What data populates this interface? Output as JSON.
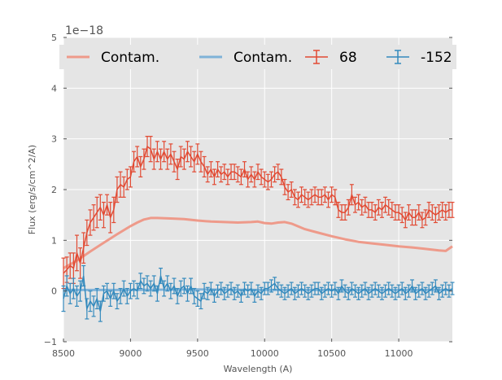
{
  "chart_data": {
    "type": "line",
    "xlabel": "Wavelength (A)",
    "ylabel": "Flux (erg/s/cm^2/A)",
    "y_offset_label": "1e−18",
    "xlim": [
      8500,
      11400
    ],
    "ylim": [
      -1,
      5
    ],
    "y_scale": 1e-18,
    "xticks": [
      8500,
      9000,
      9500,
      10000,
      10500,
      11000
    ],
    "yticks": [
      -1,
      0,
      1,
      2,
      3,
      4,
      5
    ],
    "grid": true,
    "legend_position": "top",
    "colors": {
      "red": "#E24A33",
      "blue": "#348ABD",
      "red_contam": "#EE9A8A",
      "blue_contam": "#7FB2D8",
      "background": "#E5E5E5",
      "grid": "#ffffff"
    },
    "legend": [
      {
        "label": "Contam.",
        "kind": "line",
        "color": "#EE9A8A"
      },
      {
        "label": "Contam.",
        "kind": "line",
        "color": "#7FB2D8"
      },
      {
        "label": "68",
        "kind": "errorbar",
        "color": "#E24A33"
      },
      {
        "label": "-152",
        "kind": "errorbar",
        "color": "#348ABD"
      }
    ],
    "series": [
      {
        "name": "Contam.",
        "role": "contamination",
        "color": "#EE9A8A",
        "x": [
          8500,
          8600,
          8700,
          8800,
          8900,
          9000,
          9050,
          9100,
          9150,
          9200,
          9300,
          9400,
          9500,
          9600,
          9700,
          9800,
          9900,
          9950,
          10000,
          10050,
          10100,
          10150,
          10200,
          10300,
          10400,
          10500,
          10600,
          10700,
          10800,
          10900,
          11000,
          11100,
          11200,
          11300,
          11350,
          11400
        ],
        "y": [
          0.45,
          0.6,
          0.78,
          0.95,
          1.12,
          1.28,
          1.35,
          1.41,
          1.44,
          1.44,
          1.43,
          1.42,
          1.39,
          1.37,
          1.36,
          1.35,
          1.36,
          1.37,
          1.34,
          1.33,
          1.35,
          1.36,
          1.33,
          1.22,
          1.15,
          1.08,
          1.02,
          0.97,
          0.94,
          0.91,
          0.88,
          0.86,
          0.83,
          0.8,
          0.79,
          0.88
        ]
      },
      {
        "name": "Contam.",
        "role": "contamination",
        "color": "#7FB2D8",
        "x": [
          8500,
          8700,
          9000,
          9500,
          10000,
          10500,
          11000,
          11400
        ],
        "y": [
          0.02,
          0.02,
          0.02,
          0.03,
          0.02,
          0.02,
          0.02,
          0.02
        ]
      },
      {
        "name": "68",
        "role": "errorbar",
        "color": "#E24A33",
        "x": [
          8500,
          8525,
          8550,
          8575,
          8600,
          8625,
          8650,
          8675,
          8700,
          8725,
          8750,
          8775,
          8800,
          8825,
          8850,
          8875,
          8900,
          8925,
          8950,
          8975,
          9000,
          9025,
          9050,
          9075,
          9100,
          9125,
          9150,
          9175,
          9200,
          9225,
          9250,
          9275,
          9300,
          9325,
          9350,
          9375,
          9400,
          9425,
          9450,
          9475,
          9500,
          9525,
          9550,
          9575,
          9600,
          9625,
          9650,
          9675,
          9700,
          9725,
          9750,
          9775,
          9800,
          9825,
          9850,
          9875,
          9900,
          9925,
          9950,
          9975,
          10000,
          10025,
          10050,
          10075,
          10100,
          10125,
          10150,
          10175,
          10200,
          10225,
          10250,
          10275,
          10300,
          10325,
          10350,
          10375,
          10400,
          10425,
          10450,
          10475,
          10500,
          10525,
          10550,
          10575,
          10600,
          10625,
          10650,
          10675,
          10700,
          10725,
          10750,
          10775,
          10800,
          10825,
          10850,
          10875,
          10900,
          10925,
          10950,
          10975,
          11000,
          11025,
          11050,
          11075,
          11100,
          11125,
          11150,
          11175,
          11200,
          11225,
          11250,
          11275,
          11300,
          11325,
          11350,
          11375,
          11400
        ],
        "y": [
          0.35,
          0.42,
          0.5,
          0.45,
          0.75,
          0.55,
          0.85,
          1.15,
          1.35,
          1.45,
          1.55,
          1.65,
          1.5,
          1.7,
          1.45,
          1.6,
          2.0,
          2.1,
          2.05,
          2.2,
          2.25,
          2.55,
          2.65,
          2.45,
          2.6,
          2.85,
          2.8,
          2.6,
          2.75,
          2.6,
          2.75,
          2.6,
          2.7,
          2.55,
          2.4,
          2.65,
          2.6,
          2.75,
          2.65,
          2.55,
          2.7,
          2.55,
          2.45,
          2.3,
          2.4,
          2.25,
          2.4,
          2.3,
          2.35,
          2.25,
          2.35,
          2.35,
          2.3,
          2.25,
          2.4,
          2.2,
          2.3,
          2.2,
          2.35,
          2.25,
          2.2,
          2.15,
          2.2,
          2.3,
          2.35,
          2.25,
          2.05,
          1.95,
          2.0,
          1.85,
          1.8,
          1.9,
          1.85,
          1.8,
          1.85,
          1.9,
          1.85,
          1.85,
          1.9,
          1.8,
          1.9,
          1.85,
          1.6,
          1.55,
          1.55,
          1.65,
          1.9,
          1.7,
          1.75,
          1.65,
          1.7,
          1.6,
          1.6,
          1.55,
          1.65,
          1.6,
          1.7,
          1.65,
          1.6,
          1.55,
          1.55,
          1.5,
          1.4,
          1.55,
          1.45,
          1.45,
          1.55,
          1.4,
          1.45,
          1.6,
          1.55,
          1.5,
          1.55,
          1.6,
          1.55,
          1.6,
          1.6
        ],
        "err": [
          0.3,
          0.25,
          0.25,
          0.3,
          0.35,
          0.3,
          0.3,
          0.25,
          0.25,
          0.25,
          0.3,
          0.25,
          0.25,
          0.2,
          0.3,
          0.25,
          0.25,
          0.25,
          0.2,
          0.2,
          0.2,
          0.2,
          0.2,
          0.2,
          0.2,
          0.2,
          0.25,
          0.2,
          0.2,
          0.2,
          0.2,
          0.2,
          0.2,
          0.2,
          0.2,
          0.2,
          0.2,
          0.2,
          0.2,
          0.2,
          0.2,
          0.2,
          0.2,
          0.15,
          0.15,
          0.15,
          0.15,
          0.15,
          0.15,
          0.15,
          0.15,
          0.15,
          0.15,
          0.15,
          0.15,
          0.15,
          0.15,
          0.15,
          0.15,
          0.15,
          0.15,
          0.15,
          0.15,
          0.15,
          0.15,
          0.15,
          0.15,
          0.15,
          0.15,
          0.15,
          0.15,
          0.15,
          0.15,
          0.15,
          0.15,
          0.15,
          0.15,
          0.15,
          0.15,
          0.15,
          0.15,
          0.15,
          0.15,
          0.15,
          0.15,
          0.15,
          0.2,
          0.15,
          0.15,
          0.15,
          0.15,
          0.15,
          0.15,
          0.15,
          0.15,
          0.15,
          0.15,
          0.15,
          0.15,
          0.15,
          0.15,
          0.15,
          0.15,
          0.15,
          0.15,
          0.15,
          0.15,
          0.15,
          0.15,
          0.15,
          0.15,
          0.15,
          0.15,
          0.15,
          0.15,
          0.15,
          0.15
        ]
      },
      {
        "name": "-152",
        "role": "errorbar",
        "color": "#348ABD",
        "x": [
          8500,
          8525,
          8550,
          8575,
          8600,
          8625,
          8650,
          8675,
          8700,
          8725,
          8750,
          8775,
          8800,
          8825,
          8850,
          8875,
          8900,
          8925,
          8950,
          8975,
          9000,
          9025,
          9050,
          9075,
          9100,
          9125,
          9150,
          9175,
          9200,
          9225,
          9250,
          9275,
          9300,
          9325,
          9350,
          9375,
          9400,
          9425,
          9450,
          9475,
          9500,
          9525,
          9550,
          9575,
          9600,
          9625,
          9650,
          9675,
          9700,
          9725,
          9750,
          9775,
          9800,
          9825,
          9850,
          9875,
          9900,
          9925,
          9950,
          9975,
          10000,
          10025,
          10050,
          10075,
          10100,
          10125,
          10150,
          10175,
          10200,
          10225,
          10250,
          10275,
          10300,
          10325,
          10350,
          10375,
          10400,
          10425,
          10450,
          10475,
          10500,
          10525,
          10550,
          10575,
          10600,
          10625,
          10650,
          10675,
          10700,
          10725,
          10750,
          10775,
          10800,
          10825,
          10850,
          10875,
          10900,
          10925,
          10950,
          10975,
          11000,
          11025,
          11050,
          11075,
          11100,
          11125,
          11150,
          11175,
          11200,
          11225,
          11250,
          11275,
          11300,
          11325,
          11350,
          11375,
          11400
        ],
        "y": [
          -0.15,
          0.1,
          -0.05,
          0.05,
          -0.1,
          0.0,
          0.3,
          -0.35,
          -0.2,
          -0.3,
          -0.15,
          -0.4,
          -0.05,
          0.0,
          -0.15,
          0.0,
          -0.2,
          -0.1,
          0.05,
          -0.1,
          0.0,
          0.05,
          0.0,
          0.2,
          0.1,
          0.15,
          0.05,
          0.15,
          -0.05,
          0.3,
          0.05,
          0.15,
          0.0,
          0.1,
          -0.1,
          0.05,
          0.1,
          -0.05,
          0.1,
          -0.1,
          -0.15,
          -0.2,
          0.0,
          -0.05,
          0.05,
          -0.1,
          0.0,
          0.05,
          -0.05,
          0.0,
          0.05,
          -0.05,
          0.0,
          -0.1,
          0.05,
          0.0,
          0.05,
          -0.1,
          0.0,
          -0.05,
          0.05,
          0.05,
          0.1,
          0.15,
          0.05,
          0.0,
          -0.05,
          0.0,
          0.05,
          -0.05,
          0.0,
          0.05,
          0.0,
          -0.05,
          0.0,
          0.05,
          0.05,
          -0.05,
          0.0,
          0.05,
          0.0,
          0.05,
          -0.05,
          0.1,
          0.0,
          -0.05,
          0.05,
          0.0,
          -0.05,
          0.0,
          0.05,
          -0.05,
          0.0,
          0.05,
          0.0,
          -0.05,
          0.0,
          0.05,
          0.0,
          -0.05,
          0.0,
          0.05,
          -0.05,
          0.0,
          0.1,
          -0.05,
          0.0,
          0.05,
          -0.05,
          0.0,
          0.05,
          0.1,
          -0.05,
          0.0,
          0.05,
          0.0,
          0.05
        ],
        "err": [
          0.25,
          0.2,
          0.2,
          0.2,
          0.2,
          0.2,
          0.2,
          0.2,
          0.2,
          0.2,
          0.2,
          0.2,
          0.15,
          0.15,
          0.15,
          0.15,
          0.15,
          0.15,
          0.15,
          0.15,
          0.15,
          0.15,
          0.15,
          0.15,
          0.15,
          0.15,
          0.15,
          0.15,
          0.15,
          0.15,
          0.15,
          0.15,
          0.15,
          0.15,
          0.15,
          0.15,
          0.15,
          0.15,
          0.15,
          0.15,
          0.15,
          0.15,
          0.15,
          0.12,
          0.12,
          0.12,
          0.12,
          0.12,
          0.12,
          0.12,
          0.12,
          0.12,
          0.12,
          0.12,
          0.12,
          0.12,
          0.12,
          0.12,
          0.12,
          0.12,
          0.12,
          0.12,
          0.12,
          0.12,
          0.12,
          0.12,
          0.12,
          0.12,
          0.12,
          0.12,
          0.12,
          0.12,
          0.12,
          0.12,
          0.12,
          0.12,
          0.12,
          0.12,
          0.12,
          0.12,
          0.12,
          0.12,
          0.12,
          0.12,
          0.12,
          0.12,
          0.12,
          0.12,
          0.12,
          0.12,
          0.12,
          0.12,
          0.12,
          0.12,
          0.12,
          0.12,
          0.12,
          0.12,
          0.12,
          0.12,
          0.12,
          0.12,
          0.12,
          0.12,
          0.12,
          0.12,
          0.12,
          0.12,
          0.12,
          0.12,
          0.12,
          0.12,
          0.12,
          0.12,
          0.12,
          0.12,
          0.12
        ]
      }
    ]
  }
}
